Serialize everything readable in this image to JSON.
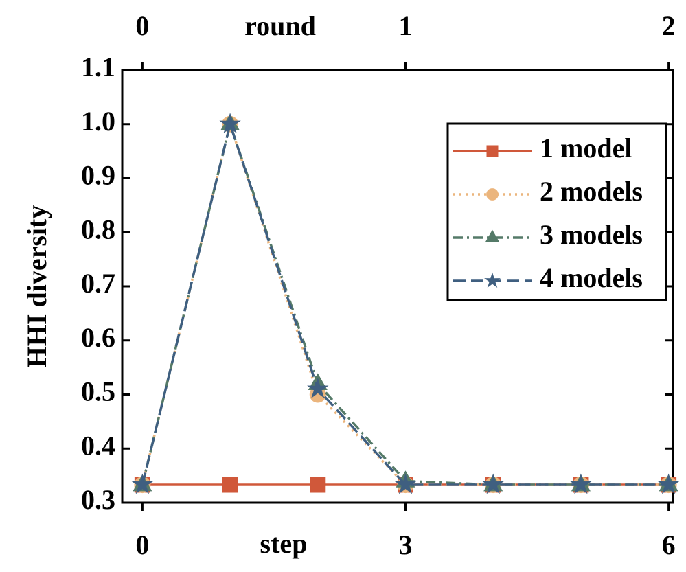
{
  "chart_data": {
    "type": "line",
    "xlabel": "step",
    "x2label": "round",
    "ylabel": "HHI diversity",
    "x": [
      0,
      1,
      2,
      3,
      4,
      5,
      6
    ],
    "series": [
      {
        "name": "1 model",
        "color": "#d0583a",
        "linestyle": "solid",
        "marker": "square",
        "values": [
          0.333,
          0.333,
          0.333,
          0.333,
          0.333,
          0.333,
          0.333
        ]
      },
      {
        "name": "2 models",
        "color": "#ebb57d",
        "linestyle": "dotted",
        "marker": "circle",
        "values": [
          0.333,
          1.0,
          0.5,
          0.333,
          0.333,
          0.333,
          0.333
        ]
      },
      {
        "name": "3 models",
        "color": "#557a68",
        "linestyle": "dashdot",
        "marker": "triangle",
        "values": [
          0.333,
          1.0,
          0.52,
          0.34,
          0.333,
          0.333,
          0.333
        ]
      },
      {
        "name": "4 models",
        "color": "#3f5f80",
        "linestyle": "dashed",
        "marker": "star",
        "values": [
          0.333,
          1.0,
          0.51,
          0.333,
          0.333,
          0.333,
          0.333
        ]
      }
    ],
    "xlim": [
      -0.23,
      6.05
    ],
    "xticks": [
      0,
      3,
      6
    ],
    "x2lim": [
      -0.0767,
      2.0167
    ],
    "x2ticks": [
      0,
      1,
      2
    ],
    "ylim": [
      0.3,
      1.1
    ],
    "yticks": [
      {
        "value": 0.3,
        "label": "0.3"
      },
      {
        "value": 0.4,
        "label": "0.4"
      },
      {
        "value": 0.5,
        "label": "0.5"
      },
      {
        "value": 0.6,
        "label": "0.6"
      },
      {
        "value": 0.7,
        "label": "0.7"
      },
      {
        "value": 0.8,
        "label": "0.8"
      },
      {
        "value": 0.9,
        "label": "0.9"
      },
      {
        "value": 1.0,
        "label": "1.0"
      },
      {
        "value": 1.1,
        "label": "1.1"
      }
    ],
    "legend": "upper right",
    "grid": false
  }
}
